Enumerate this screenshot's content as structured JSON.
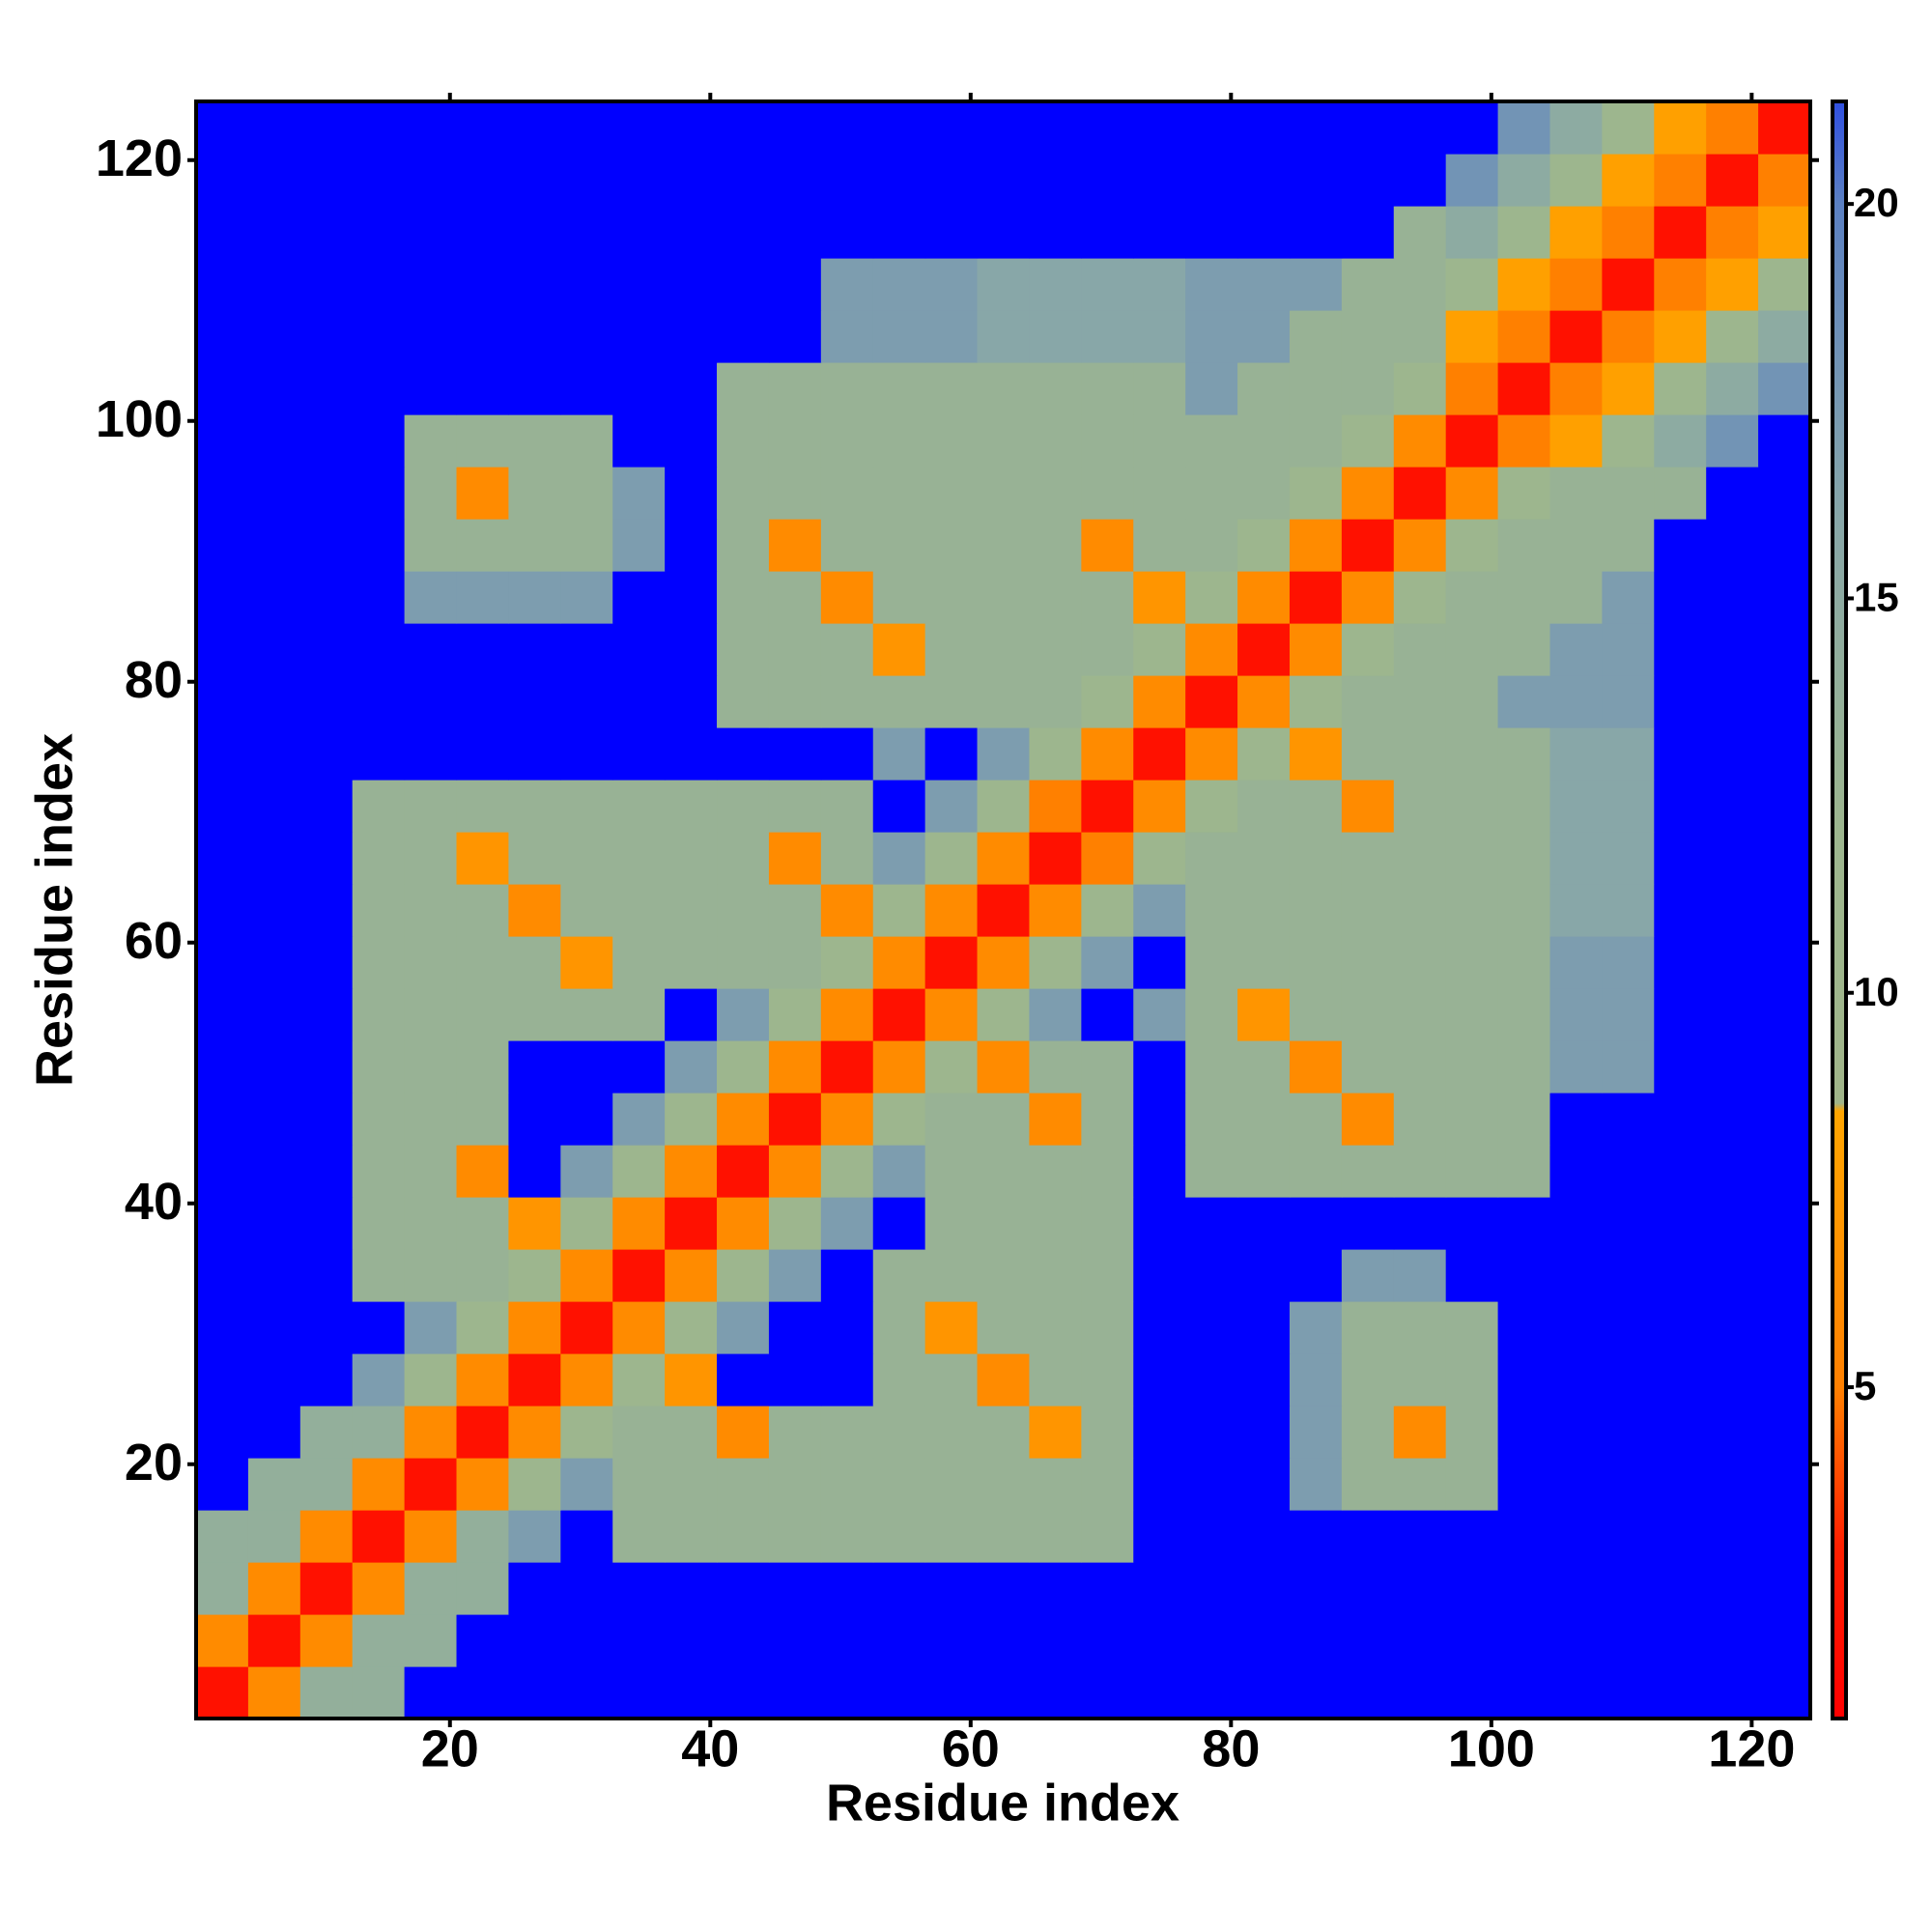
{
  "chart_data": {
    "type": "heatmap",
    "x_label": "Residue index",
    "y_label": "Residue index",
    "x": [
      2.5,
      6.5,
      10.5,
      14.5,
      18.5,
      22.5,
      26.5,
      30.5,
      34.5,
      38.5,
      42.5,
      46.5,
      50.5,
      54.5,
      58.5,
      62.5,
      66.5,
      70.5,
      74.5,
      78.5,
      82.5,
      86.5,
      90.5,
      94.5,
      98.5,
      102.5,
      106.5,
      110.5,
      114.5,
      118.5,
      122.5
    ],
    "y": [
      2.5,
      6.5,
      10.5,
      14.5,
      18.5,
      22.5,
      26.5,
      30.5,
      34.5,
      38.5,
      42.5,
      46.5,
      50.5,
      54.5,
      58.5,
      62.5,
      66.5,
      70.5,
      74.5,
      78.5,
      82.5,
      86.5,
      90.5,
      94.5,
      98.5,
      102.5,
      106.5,
      110.5,
      114.5,
      118.5,
      122.5
    ],
    "z": [
      [
        2,
        6,
        14,
        14,
        22,
        22,
        22,
        22,
        22,
        22,
        22,
        22,
        22,
        22,
        22,
        22,
        22,
        22,
        22,
        22,
        22,
        22,
        22,
        22,
        22,
        22,
        22,
        22,
        22,
        22,
        22
      ],
      [
        6,
        2,
        6,
        14,
        14,
        22,
        22,
        22,
        22,
        22,
        22,
        22,
        22,
        22,
        22,
        22,
        22,
        22,
        22,
        22,
        22,
        22,
        22,
        22,
        22,
        22,
        22,
        22,
        22,
        22,
        22
      ],
      [
        14,
        6,
        2,
        6,
        14,
        14,
        22,
        22,
        22,
        22,
        22,
        22,
        22,
        22,
        22,
        22,
        22,
        22,
        22,
        22,
        22,
        22,
        22,
        22,
        22,
        22,
        22,
        22,
        22,
        22,
        22
      ],
      [
        14,
        14,
        6,
        2,
        6,
        14,
        17,
        22,
        13,
        13,
        13,
        13,
        13,
        13,
        13,
        13,
        13,
        13,
        22,
        22,
        22,
        22,
        22,
        22,
        22,
        22,
        22,
        22,
        22,
        22,
        22
      ],
      [
        22,
        14,
        14,
        6,
        2,
        6,
        12,
        17,
        13,
        13,
        13,
        13,
        13,
        13,
        13,
        13,
        13,
        13,
        22,
        22,
        22,
        17,
        13,
        13,
        13,
        22,
        22,
        22,
        22,
        22,
        22
      ],
      [
        22,
        22,
        14,
        14,
        6,
        2,
        6,
        12,
        13,
        13,
        6,
        13,
        13,
        13,
        13,
        13,
        7,
        13,
        22,
        22,
        22,
        17,
        13,
        6,
        13,
        22,
        22,
        22,
        22,
        22,
        22
      ],
      [
        22,
        22,
        22,
        17,
        12,
        6,
        2,
        6,
        12,
        7,
        22,
        22,
        22,
        13,
        13,
        6,
        13,
        13,
        22,
        22,
        22,
        17,
        13,
        13,
        13,
        22,
        22,
        22,
        22,
        22,
        22
      ],
      [
        22,
        22,
        22,
        22,
        17,
        12,
        6,
        2,
        6,
        12,
        17,
        22,
        22,
        13,
        7,
        13,
        13,
        13,
        22,
        22,
        22,
        17,
        13,
        13,
        13,
        22,
        22,
        22,
        22,
        22,
        22
      ],
      [
        22,
        22,
        22,
        13,
        13,
        13,
        12,
        6,
        2,
        6,
        12,
        17,
        22,
        13,
        13,
        13,
        13,
        13,
        22,
        22,
        22,
        22,
        17,
        17,
        22,
        22,
        22,
        22,
        22,
        22,
        22
      ],
      [
        22,
        22,
        22,
        13,
        13,
        13,
        7,
        12,
        6,
        2,
        6,
        12,
        17,
        22,
        13,
        13,
        13,
        13,
        22,
        22,
        22,
        22,
        22,
        22,
        22,
        22,
        22,
        22,
        22,
        22,
        22
      ],
      [
        22,
        22,
        22,
        13,
        13,
        6,
        22,
        17,
        12,
        6,
        2,
        6,
        12,
        17,
        13,
        13,
        13,
        13,
        22,
        13,
        13,
        13,
        13,
        13,
        13,
        13,
        22,
        22,
        22,
        22,
        22
      ],
      [
        22,
        22,
        22,
        13,
        13,
        13,
        22,
        22,
        17,
        12,
        6,
        2,
        6,
        12,
        13,
        13,
        6,
        13,
        22,
        13,
        13,
        13,
        6,
        13,
        13,
        13,
        22,
        22,
        22,
        22,
        22
      ],
      [
        22,
        22,
        22,
        13,
        13,
        13,
        22,
        22,
        22,
        17,
        12,
        6,
        2,
        6,
        12,
        6,
        13,
        13,
        22,
        13,
        13,
        6,
        13,
        13,
        13,
        13,
        17,
        17,
        22,
        22,
        22
      ],
      [
        22,
        22,
        22,
        13,
        13,
        13,
        13,
        13,
        13,
        22,
        17,
        12,
        6,
        2,
        6,
        12,
        17,
        22,
        17,
        13,
        7,
        13,
        13,
        13,
        13,
        13,
        17,
        17,
        22,
        22,
        22
      ],
      [
        22,
        22,
        22,
        13,
        13,
        13,
        13,
        7,
        13,
        13,
        13,
        13,
        12,
        6,
        2,
        6,
        12,
        17,
        22,
        13,
        13,
        13,
        13,
        13,
        13,
        13,
        17,
        17,
        22,
        22,
        22
      ],
      [
        22,
        22,
        22,
        13,
        13,
        13,
        6,
        13,
        13,
        13,
        13,
        13,
        6,
        12,
        6,
        2,
        6,
        12,
        17,
        13,
        13,
        13,
        13,
        13,
        13,
        13,
        16,
        16,
        22,
        22,
        22
      ],
      [
        22,
        22,
        22,
        13,
        13,
        7,
        13,
        13,
        13,
        13,
        13,
        6,
        13,
        17,
        12,
        6,
        2,
        5,
        12,
        13,
        13,
        13,
        13,
        13,
        13,
        13,
        16,
        16,
        22,
        22,
        22
      ],
      [
        22,
        22,
        22,
        13,
        13,
        13,
        13,
        13,
        13,
        13,
        13,
        13,
        13,
        22,
        17,
        12,
        5,
        2,
        6,
        12,
        13,
        13,
        6,
        13,
        13,
        13,
        16,
        16,
        22,
        22,
        22
      ],
      [
        22,
        22,
        22,
        22,
        22,
        22,
        22,
        22,
        22,
        22,
        22,
        22,
        22,
        17,
        22,
        17,
        12,
        6,
        2,
        6,
        12,
        7,
        13,
        13,
        13,
        13,
        16,
        16,
        22,
        22,
        22
      ],
      [
        22,
        22,
        22,
        22,
        22,
        22,
        22,
        22,
        22,
        22,
        13,
        13,
        13,
        13,
        13,
        13,
        13,
        12,
        6,
        2,
        6,
        12,
        13,
        13,
        13,
        17,
        17,
        17,
        22,
        22,
        22
      ],
      [
        22,
        22,
        22,
        22,
        22,
        22,
        22,
        22,
        22,
        22,
        13,
        13,
        13,
        7,
        13,
        13,
        13,
        13,
        12,
        6,
        2,
        6,
        12,
        13,
        13,
        13,
        17,
        17,
        22,
        22,
        22
      ],
      [
        22,
        22,
        22,
        22,
        17,
        17,
        17,
        17,
        22,
        22,
        13,
        13,
        6,
        13,
        13,
        13,
        13,
        13,
        7,
        12,
        6,
        2,
        6,
        12,
        13,
        13,
        13,
        17,
        22,
        22,
        22
      ],
      [
        22,
        22,
        22,
        22,
        13,
        13,
        13,
        13,
        17,
        22,
        13,
        6,
        13,
        13,
        13,
        13,
        13,
        6,
        13,
        13,
        12,
        6,
        2,
        6,
        12,
        13,
        13,
        13,
        22,
        22,
        22
      ],
      [
        22,
        22,
        22,
        22,
        13,
        6,
        13,
        13,
        17,
        22,
        13,
        13,
        13,
        13,
        13,
        13,
        13,
        13,
        13,
        13,
        13,
        12,
        6,
        2,
        6,
        12,
        13,
        13,
        13,
        22,
        22
      ],
      [
        22,
        22,
        22,
        22,
        13,
        13,
        13,
        13,
        22,
        22,
        13,
        13,
        13,
        13,
        13,
        13,
        13,
        13,
        13,
        13,
        13,
        13,
        12,
        6,
        2,
        5,
        8,
        12,
        15,
        18,
        22
      ],
      [
        22,
        22,
        22,
        22,
        22,
        22,
        22,
        22,
        22,
        22,
        13,
        13,
        13,
        13,
        13,
        13,
        13,
        13,
        13,
        17,
        13,
        13,
        13,
        12,
        5,
        2,
        5,
        8,
        12,
        15,
        18
      ],
      [
        22,
        22,
        22,
        22,
        22,
        22,
        22,
        22,
        22,
        22,
        22,
        22,
        17,
        17,
        17,
        16,
        16,
        16,
        16,
        17,
        17,
        13,
        13,
        13,
        8,
        5,
        2,
        5,
        8,
        12,
        15
      ],
      [
        22,
        22,
        22,
        22,
        22,
        22,
        22,
        22,
        22,
        22,
        22,
        22,
        17,
        17,
        17,
        16,
        16,
        16,
        16,
        17,
        17,
        17,
        13,
        13,
        12,
        8,
        5,
        2,
        5,
        8,
        12
      ],
      [
        22,
        22,
        22,
        22,
        22,
        22,
        22,
        22,
        22,
        22,
        22,
        22,
        22,
        22,
        22,
        22,
        22,
        22,
        22,
        22,
        22,
        22,
        22,
        13,
        15,
        12,
        8,
        5,
        2,
        5,
        8
      ],
      [
        22,
        22,
        22,
        22,
        22,
        22,
        22,
        22,
        22,
        22,
        22,
        22,
        22,
        22,
        22,
        22,
        22,
        22,
        22,
        22,
        22,
        22,
        22,
        22,
        18,
        15,
        12,
        8,
        5,
        2,
        5
      ],
      [
        22,
        22,
        22,
        22,
        22,
        22,
        22,
        22,
        22,
        22,
        22,
        22,
        22,
        22,
        22,
        22,
        22,
        22,
        22,
        22,
        22,
        22,
        22,
        22,
        22,
        18,
        15,
        12,
        8,
        5,
        2
      ]
    ],
    "xlim": [
      0.5,
      124.5
    ],
    "ylim": [
      0.5,
      124.5
    ],
    "xticks": [
      20,
      40,
      60,
      80,
      100,
      120
    ],
    "yticks": [
      20,
      40,
      60,
      80,
      100,
      120
    ],
    "zlim": [
      0.8,
      21.3
    ],
    "colorbar_ticks": [
      5,
      10,
      15,
      20
    ],
    "colorscale": [
      [
        0.8,
        "#ff0000"
      ],
      [
        3,
        "#ff2000"
      ],
      [
        5,
        "#ff8000"
      ],
      [
        8.5,
        "#ffa500"
      ],
      [
        8.6,
        "#a0b58a"
      ],
      [
        12,
        "#9db68e"
      ],
      [
        16,
        "#88a7a8"
      ],
      [
        20,
        "#5b80c2"
      ],
      [
        21.3,
        "#3050e0"
      ]
    ],
    "over_color": "#0000ff"
  }
}
